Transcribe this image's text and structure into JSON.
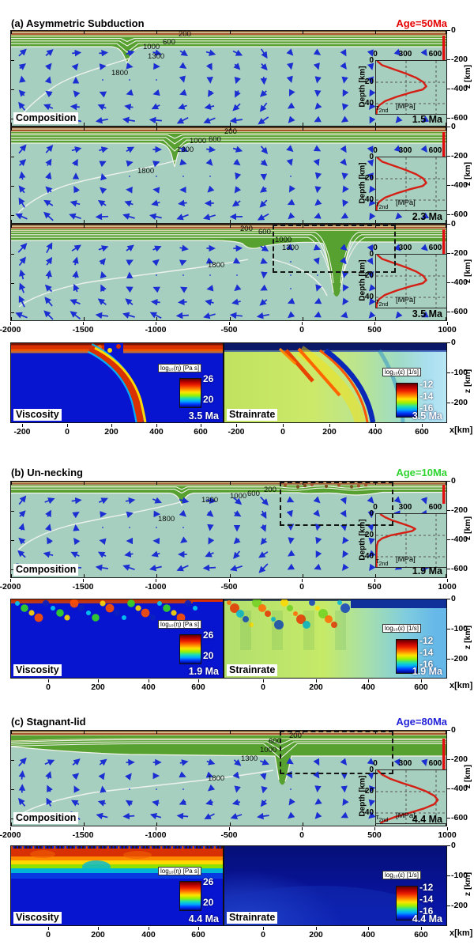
{
  "figure": {
    "panels": [
      {
        "key": "a",
        "title": "(a) Asymmetric Subduction",
        "age": "Age=50Ma",
        "age_color": "#e60000",
        "composition_label": "Composition",
        "snapshot_times": [
          "1.5 Ma",
          "2.3 Ma",
          "3.5 Ma"
        ],
        "viscosity_label": "Viscosity",
        "viscosity_time": "3.5 Ma",
        "strainrate_label": "Strainrate",
        "strainrate_time": "3.5 Ma"
      },
      {
        "key": "b",
        "title": "(b) Un-necking",
        "age": "Age=10Ma",
        "age_color": "#2ed32e",
        "composition_label": "Composition",
        "snapshot_times": [
          "1.9 Ma"
        ],
        "viscosity_label": "Viscosity",
        "viscosity_time": "1.9 Ma",
        "strainrate_label": "Strainrate",
        "strainrate_time": "1.9 Ma"
      },
      {
        "key": "c",
        "title": "(c) Stagnant-lid",
        "age": "Age=80Ma",
        "age_color": "#2222d8",
        "composition_label": "Composition",
        "snapshot_times": [
          "4.4 Ma"
        ],
        "viscosity_label": "Viscosity",
        "viscosity_time": "4.4 Ma",
        "strainrate_label": "Strainrate",
        "strainrate_time": "4.4 Ma"
      }
    ],
    "axes": {
      "comp_x_ticks": [
        "-2000",
        "-1500",
        "-1000",
        "-500",
        "0",
        "500",
        "1000"
      ],
      "comp_z_ticks": [
        "0",
        "-200",
        "-400",
        "-600"
      ],
      "zoom_x_ticks_a": [
        "-200",
        "0",
        "200",
        "400",
        "600"
      ],
      "zoom_x_ticks_bc": [
        "0",
        "200",
        "400",
        "600"
      ],
      "zoom_z_ticks": [
        "0",
        "-100",
        "-200"
      ],
      "z_axis_label": "z [km]",
      "x_axis_label": "x[km]"
    },
    "isotherm_labels": [
      "200",
      "600",
      "1000",
      "1300",
      "1800"
    ],
    "inset": {
      "x_ticks": [
        "0",
        "300",
        "600"
      ],
      "y_ticks": [
        "0",
        "-20",
        "-40"
      ],
      "ylabel": "Depth [km]",
      "xlabel": "[MPa]",
      "curve_symbol": "τ",
      "curve_subscript": "2nd"
    },
    "colorbars": {
      "viscosity": {
        "title": "log₁₀(η) [Pa s]",
        "ticks": [
          "26",
          "20"
        ]
      },
      "strainrate": {
        "title": "log₁₀(ε̇) [1/s]",
        "ticks": [
          "-12",
          "-14",
          "-16"
        ]
      }
    }
  },
  "chart_data": [
    {
      "panel": "a",
      "title": "(a) Asymmetric Subduction",
      "type": "heatmap",
      "plate_age_Ma": 50,
      "snapshot_times_Ma": [
        1.5,
        2.3,
        3.5
      ],
      "composition_axis": {
        "x_km": [
          -2000,
          1000
        ],
        "z_km": [
          -660,
          0
        ]
      },
      "zoom_axis": {
        "x_km": [
          -250,
          700
        ],
        "z_km": [
          -270,
          0
        ]
      },
      "isotherms_C": [
        200,
        600,
        1000,
        1300,
        1800
      ],
      "viscosity_log10_PaS_range": [
        20,
        26
      ],
      "strainrate_log10_per_s_range": [
        -16,
        -12
      ],
      "stress_profile": {
        "depth_km": [
          0,
          -4,
          -8,
          -12,
          -16,
          -20,
          -24,
          -27,
          -30,
          -34,
          -38,
          -42,
          -46,
          -50
        ],
        "tau2nd_MPa": [
          10,
          60,
          180,
          300,
          400,
          470,
          500,
          465,
          340,
          200,
          90,
          30,
          8,
          5
        ]
      }
    },
    {
      "panel": "b",
      "title": "(b) Un-necking",
      "type": "heatmap",
      "plate_age_Ma": 10,
      "snapshot_times_Ma": [
        1.9
      ],
      "composition_axis": {
        "x_km": [
          -2000,
          1000
        ],
        "z_km": [
          -660,
          0
        ]
      },
      "zoom_axis": {
        "x_km": [
          -150,
          700
        ],
        "z_km": [
          -270,
          0
        ]
      },
      "isotherms_C": [
        200,
        600,
        1000,
        1300,
        1800
      ],
      "viscosity_log10_PaS_range": [
        20,
        26
      ],
      "strainrate_log10_per_s_range": [
        -16,
        -12
      ],
      "stress_profile": {
        "depth_km": [
          0,
          -3,
          -6,
          -9,
          -12,
          -14,
          -16,
          -18,
          -20,
          -23,
          -26,
          -30,
          -36,
          -44,
          -50
        ],
        "tau2nd_MPa": [
          40,
          90,
          160,
          260,
          350,
          390,
          360,
          260,
          150,
          60,
          20,
          8,
          5,
          4,
          4
        ]
      }
    },
    {
      "panel": "c",
      "title": "(c) Stagnant-lid",
      "type": "heatmap",
      "plate_age_Ma": 80,
      "snapshot_times_Ma": [
        4.4
      ],
      "composition_axis": {
        "x_km": [
          -2000,
          1000
        ],
        "z_km": [
          -660,
          0
        ]
      },
      "zoom_axis": {
        "x_km": [
          -150,
          700
        ],
        "z_km": [
          -270,
          0
        ]
      },
      "isotherms_C": [
        200,
        600,
        1000,
        1300,
        1800
      ],
      "viscosity_log10_PaS_range": [
        20,
        26
      ],
      "strainrate_log10_per_s_range": [
        -16,
        -12
      ],
      "stress_profile": {
        "depth_km": [
          0,
          -4,
          -8,
          -12,
          -16,
          -20,
          -24,
          -28,
          -32,
          -36,
          -40,
          -44,
          -48,
          -50
        ],
        "tau2nd_MPa": [
          15,
          60,
          140,
          260,
          390,
          500,
          580,
          615,
          580,
          480,
          340,
          190,
          80,
          40
        ]
      }
    }
  ]
}
